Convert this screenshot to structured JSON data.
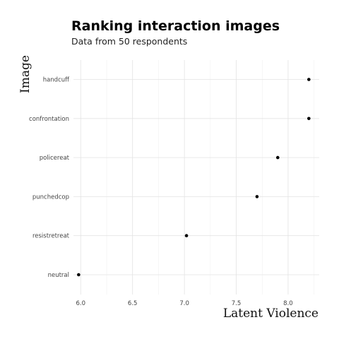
{
  "chart_data": {
    "type": "scatter",
    "title": "Ranking interaction images",
    "subtitle": "Data from 50 respondents",
    "xlabel": "Latent Violence",
    "ylabel": "Image",
    "categories": [
      "handcuff",
      "confrontation",
      "policereat",
      "punchedcop",
      "resistretreat",
      "neutral"
    ],
    "values": [
      8.2,
      8.2,
      7.9,
      7.7,
      7.02,
      5.98
    ],
    "xlim": [
      5.93,
      8.3
    ],
    "x_ticks": [
      6.0,
      6.5,
      7.0,
      7.5,
      8.0
    ],
    "x_tick_labels": [
      "6.0",
      "6.5",
      "7.0",
      "7.5",
      "8.0"
    ],
    "grid": true,
    "legend": "none",
    "point_color": "#000000"
  }
}
